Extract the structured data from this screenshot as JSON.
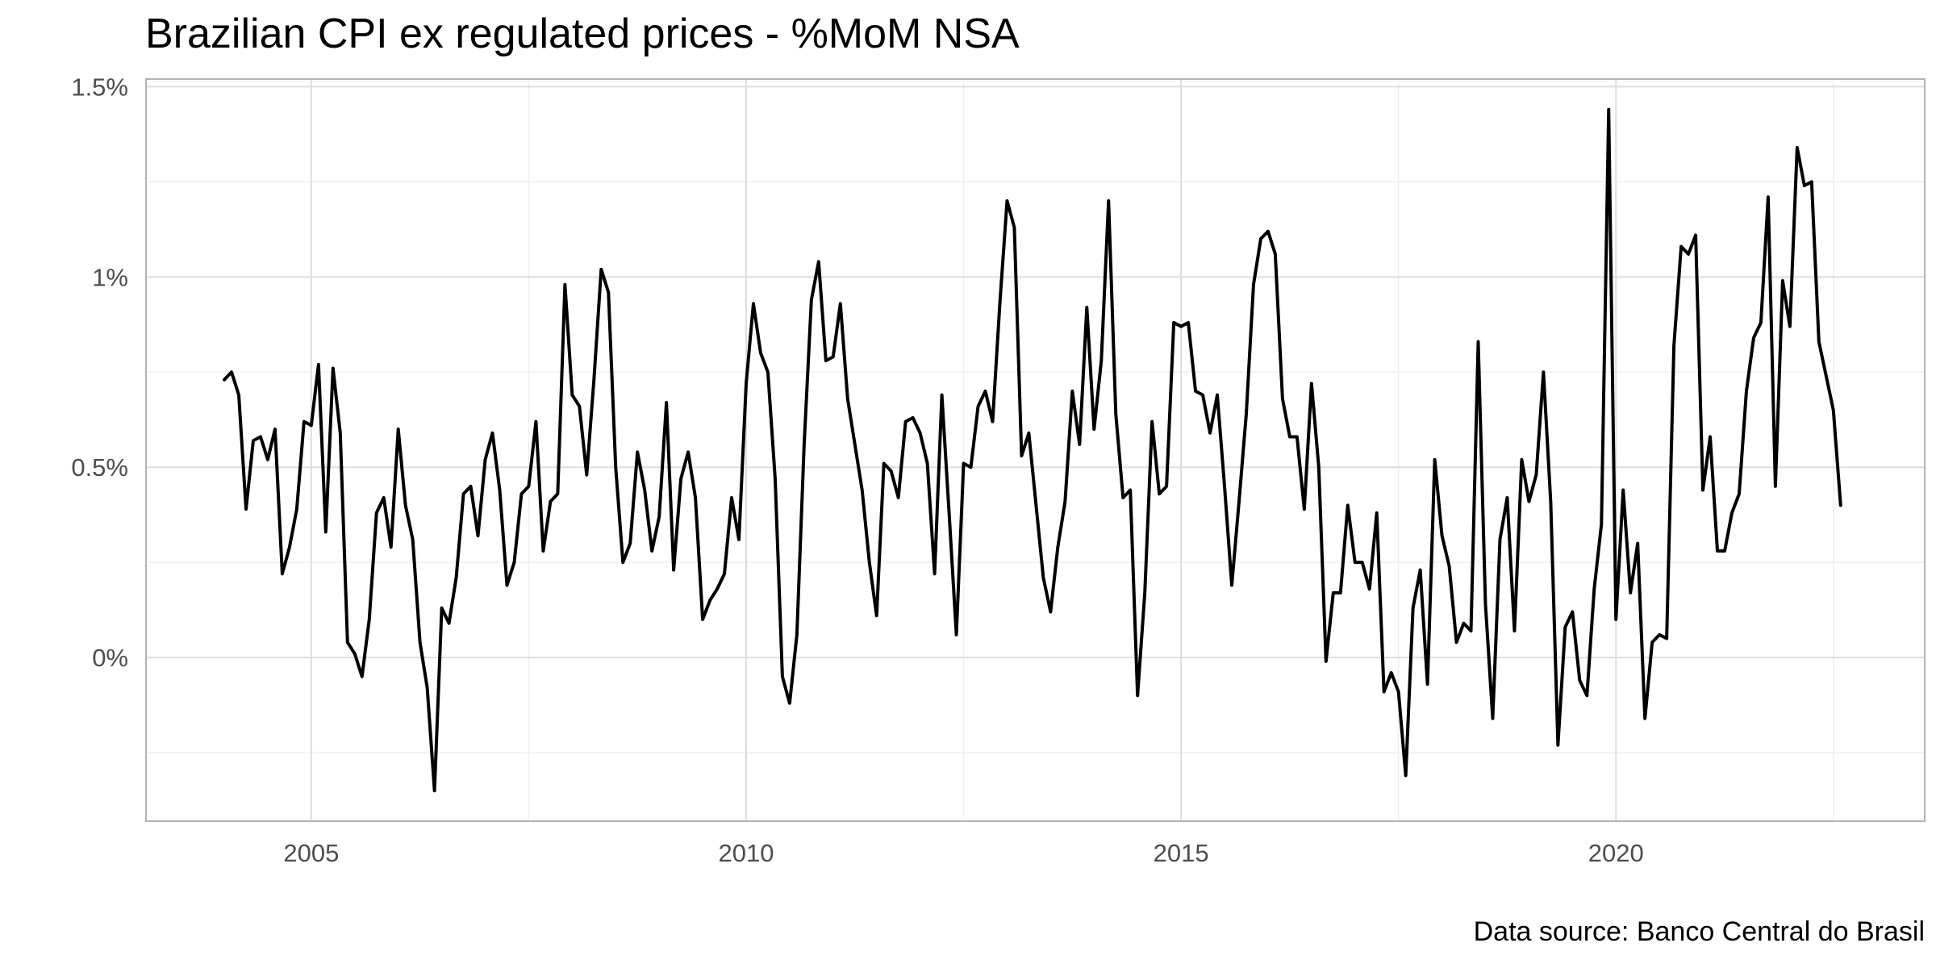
{
  "chart_data": {
    "type": "line",
    "title": "Brazilian CPI ex regulated prices - %MoM NSA",
    "caption": "Data source: Banco Central do Brasil",
    "xlabel": "",
    "ylabel": "",
    "xlim": [
      2003.1,
      2023.55
    ],
    "ylim": [
      -0.43,
      1.52
    ],
    "x_ticks": [
      2005,
      2010,
      2015,
      2020
    ],
    "x_tick_labels": [
      "2005",
      "2010",
      "2015",
      "2020"
    ],
    "y_ticks": [
      0,
      0.5,
      1,
      1.5
    ],
    "y_tick_labels": [
      "0%",
      "0.5%",
      "1%",
      "1.5%"
    ],
    "grid": true,
    "legend": "none",
    "line_color": "#000000",
    "panel_border_color": "#b3b3b3",
    "grid_major_color": "#dedede",
    "grid_minor_color": "#efefef",
    "series": [
      {
        "start_year": 2004,
        "start_month": 1,
        "values": [
          0.73,
          0.75,
          0.69,
          0.39,
          0.57,
          0.58,
          0.52,
          0.6,
          0.22,
          0.29,
          0.39,
          0.62,
          0.61,
          0.77,
          0.33,
          0.76,
          0.59,
          0.04,
          0.01,
          -0.05,
          0.1,
          0.38,
          0.42,
          0.29,
          0.6,
          0.4,
          0.31,
          0.04,
          -0.08,
          -0.35,
          0.13,
          0.09,
          0.21,
          0.43,
          0.45,
          0.32,
          0.52,
          0.59,
          0.44,
          0.19,
          0.25,
          0.43,
          0.45,
          0.62,
          0.28,
          0.41,
          0.43,
          0.98,
          0.69,
          0.66,
          0.48,
          0.73,
          1.02,
          0.96,
          0.5,
          0.25,
          0.3,
          0.54,
          0.44,
          0.28,
          0.37,
          0.67,
          0.23,
          0.47,
          0.54,
          0.42,
          0.1,
          0.15,
          0.18,
          0.22,
          0.42,
          0.31,
          0.72,
          0.93,
          0.8,
          0.75,
          0.47,
          -0.05,
          -0.12,
          0.06,
          0.56,
          0.94,
          1.04,
          0.78,
          0.79,
          0.93,
          0.68,
          0.56,
          0.44,
          0.25,
          0.11,
          0.51,
          0.49,
          0.42,
          0.62,
          0.63,
          0.59,
          0.51,
          0.22,
          0.69,
          0.38,
          0.06,
          0.51,
          0.5,
          0.66,
          0.7,
          0.62,
          0.93,
          1.2,
          1.13,
          0.53,
          0.59,
          0.4,
          0.21,
          0.12,
          0.29,
          0.41,
          0.7,
          0.56,
          0.92,
          0.6,
          0.78,
          1.2,
          0.64,
          0.42,
          0.44,
          -0.1,
          0.17,
          0.62,
          0.43,
          0.45,
          0.88,
          0.87,
          0.88,
          0.7,
          0.69,
          0.59,
          0.69,
          0.45,
          0.19,
          0.41,
          0.64,
          0.98,
          1.1,
          1.12,
          1.06,
          0.68,
          0.58,
          0.58,
          0.39,
          0.72,
          0.5,
          -0.01,
          0.17,
          0.17,
          0.4,
          0.25,
          0.25,
          0.18,
          0.38,
          -0.09,
          -0.04,
          -0.09,
          -0.31,
          0.13,
          0.23,
          -0.07,
          0.52,
          0.32,
          0.24,
          0.04,
          0.09,
          0.07,
          0.83,
          0.14,
          -0.16,
          0.31,
          0.42,
          0.07,
          0.52,
          0.41,
          0.48,
          0.75,
          0.41,
          -0.23,
          0.08,
          0.12,
          -0.06,
          -0.1,
          0.18,
          0.35,
          1.44,
          0.1,
          0.44,
          0.17,
          0.3,
          -0.16,
          0.04,
          0.06,
          0.05,
          0.82,
          1.08,
          1.06,
          1.11,
          0.44,
          0.58,
          0.28,
          0.28,
          0.38,
          0.43,
          0.7,
          0.84,
          0.88,
          1.21,
          0.45,
          0.99,
          0.87,
          1.34,
          1.24,
          1.25,
          0.83,
          0.74,
          0.65,
          0.4
        ]
      }
    ]
  }
}
